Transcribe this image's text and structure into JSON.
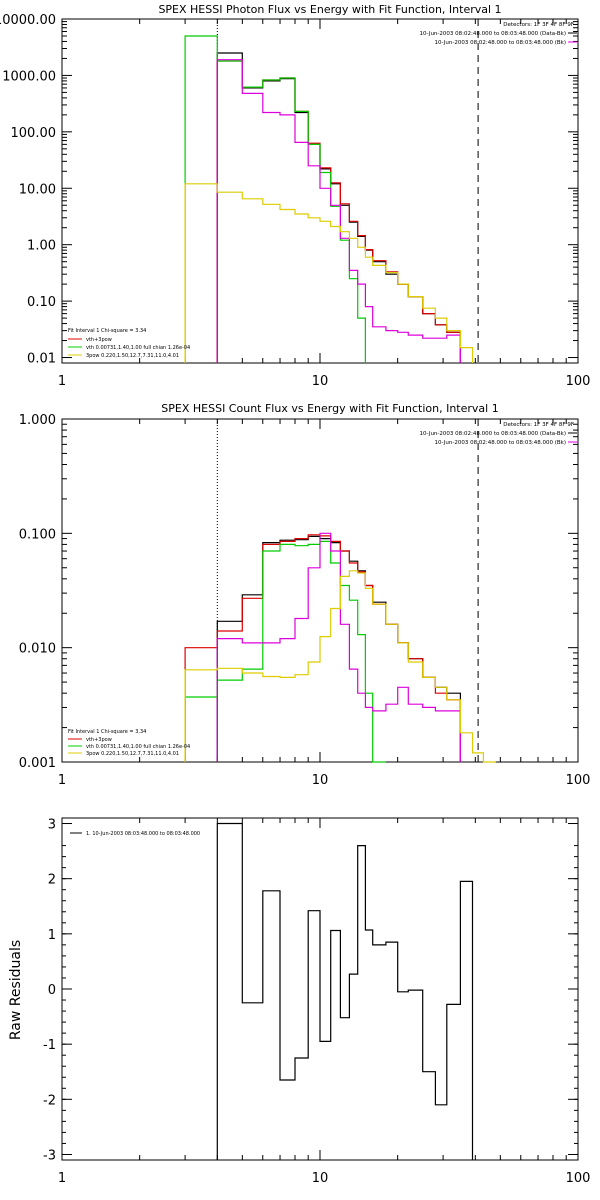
{
  "chart_data": [
    {
      "type": "line",
      "step": true,
      "title": "SPEX HESSI Photon Flux vs Energy with Fit Function, Interval 1",
      "x_scale": "log",
      "y_scale": "log",
      "xlim": [
        1,
        100
      ],
      "ylim": [
        0.008,
        10000
      ],
      "x_ticks": [
        1,
        10,
        100
      ],
      "x_tick_labels": [
        "1",
        "10",
        "100"
      ],
      "y_ticks": [
        0.01,
        0.1,
        1,
        10,
        100,
        1000,
        10000
      ],
      "y_tick_labels": [
        "0.01",
        "0.10",
        "1.00",
        "10.00",
        "100.00",
        "1000.00",
        "10000.00"
      ],
      "vlines": [
        {
          "x": 4,
          "style": "dotted"
        },
        {
          "x": 41,
          "style": "dashed"
        }
      ],
      "info_lines": [
        "Detectors: 1F 3F 4F 8F 9F",
        "10-Jun-2003 08:02:48.000 to 08:03:48.000 (Data-Bk)",
        "10-Jun-2003 08:02:48.000 to 08:03:48.000 (Bk)"
      ],
      "legend_lines": [
        "Fit Interval 1   Chi-square = 3.34",
        "vth+3pow",
        "vth 0.00731,1.40,1.00  full chian 1.26e-04",
        "3pow 0.220,1.50,12.7,7.31,11.0,4.01"
      ],
      "edges": [
        3,
        4,
        5,
        6,
        7,
        8,
        9,
        10,
        11,
        12,
        13,
        14,
        15,
        16,
        18,
        20,
        22,
        25,
        28,
        31,
        35,
        39,
        43
      ],
      "series": [
        {
          "color": "#000000",
          "from": 4,
          "values": [
            2500,
            600,
            800,
            880,
            220,
            60,
            22,
            12,
            5,
            2.5,
            1.4,
            0.8,
            0.5,
            0.3,
            0.2,
            0.12,
            0.06,
            0.038,
            0.028
          ]
        },
        {
          "color": "#dd0000",
          "from": 4,
          "values": [
            1800,
            620,
            830,
            900,
            230,
            63,
            23,
            12.5,
            5.3,
            2.6,
            1.45,
            0.82,
            0.52,
            0.33,
            0.2,
            0.12,
            0.06,
            0.038,
            0.028
          ]
        },
        {
          "color": "#00cc00",
          "from": 3,
          "values": [
            5000,
            1800,
            620,
            830,
            900,
            230,
            60,
            19,
            4.8,
            1.2,
            0.25,
            0.05
          ]
        },
        {
          "color": "#dd00dd",
          "from": 4,
          "values": [
            1900,
            480,
            220,
            200,
            65,
            25,
            10,
            5,
            1.3,
            0.35,
            0.2,
            0.08,
            0.035,
            0.03,
            0.028,
            0.025,
            0.022,
            0.022,
            0.025
          ]
        },
        {
          "color": "#ddcc00",
          "from": 3,
          "values": [
            12,
            8.5,
            6.5,
            5.2,
            4.2,
            3.5,
            3,
            2.6,
            2.1,
            1.7,
            1.3,
            0.9,
            0.6,
            0.43,
            0.32,
            0.2,
            0.12,
            0.075,
            0.05,
            0.03,
            0.015
          ]
        }
      ]
    },
    {
      "type": "line",
      "step": true,
      "title": "SPEX HESSI Count Flux vs Energy with Fit Function, Interval 1",
      "x_scale": "log",
      "y_scale": "log",
      "xlim": [
        1,
        100
      ],
      "ylim": [
        0.001,
        1.0
      ],
      "x_ticks": [
        1,
        10,
        100
      ],
      "x_tick_labels": [
        "1",
        "10",
        "100"
      ],
      "y_ticks": [
        0.001,
        0.01,
        0.1,
        1.0
      ],
      "y_tick_labels": [
        "0.001",
        "0.010",
        "0.100",
        "1.000"
      ],
      "vlines": [
        {
          "x": 4,
          "style": "dotted"
        },
        {
          "x": 41,
          "style": "dashed"
        }
      ],
      "info_lines": [
        "Detectors: 1F 3F 4F 8F 9F",
        "10-Jun-2003 08:02:48.000 to 08:03:48.000 (Data-Bk)",
        "10-Jun-2003 08:02:48.000 to 08:03:48.000 (Bk)"
      ],
      "legend_lines": [
        "Fit Interval 1   Chi-square = 3.34",
        "vth+3pow",
        "vth 0.00731,1.40,1.00  full chian 1.26e-04",
        "3pow 0.220,1.50,12.7,7.31,11.0,4.01"
      ],
      "edges": [
        3,
        4,
        5,
        6,
        7,
        8,
        9,
        10,
        11,
        12,
        13,
        14,
        15,
        16,
        18,
        20,
        22,
        25,
        28,
        31,
        35,
        39,
        43,
        48,
        53
      ],
      "series": [
        {
          "color": "#000000",
          "from": 4,
          "values": [
            0.017,
            0.029,
            0.083,
            0.087,
            0.088,
            0.094,
            0.09,
            0.083,
            0.07,
            0.057,
            0.047,
            0.035,
            0.025,
            0.016,
            0.011,
            0.008,
            0.0055,
            0.0045,
            0.004
          ]
        },
        {
          "color": "#dd0000",
          "from": 3,
          "values": [
            0.01,
            0.014,
            0.027,
            0.08,
            0.085,
            0.09,
            0.097,
            0.095,
            0.085,
            0.07,
            0.055,
            0.046,
            0.035,
            0.024,
            0.016,
            0.011,
            0.008,
            0.0055,
            0.004,
            0.0035
          ]
        },
        {
          "color": "#00cc00",
          "from": 3,
          "values": [
            0.0037,
            0.0052,
            0.0065,
            0.07,
            0.08,
            0.078,
            0.08,
            0.085,
            0.055,
            0.035,
            0.026,
            0.013,
            0.004,
            0.001
          ]
        },
        {
          "color": "#dd00dd",
          "from": 4,
          "values": [
            0.012,
            0.011,
            0.011,
            0.012,
            0.018,
            0.05,
            0.1,
            0.07,
            0.016,
            0.0065,
            0.004,
            0.003,
            0.0028,
            0.0032,
            0.0045,
            0.0032,
            0.003,
            0.0028,
            0.0028
          ]
        },
        {
          "color": "#ddcc00",
          "from": 3,
          "values": [
            0.0064,
            0.0066,
            0.006,
            0.0056,
            0.0055,
            0.0058,
            0.0075,
            0.0125,
            0.022,
            0.042,
            0.047,
            0.045,
            0.033,
            0.024,
            0.016,
            0.011,
            0.0075,
            0.0055,
            0.0045,
            0.0035,
            0.0018,
            0.0012,
            0.001
          ]
        }
      ]
    },
    {
      "type": "line",
      "step": true,
      "title": "",
      "ylabel": "Raw Residuals",
      "x_scale": "log",
      "y_scale": "linear",
      "xlim": [
        1,
        100
      ],
      "ylim": [
        -3.1,
        3.1
      ],
      "x_ticks": [
        1,
        10,
        100
      ],
      "x_tick_labels": [
        "1",
        "10",
        "100"
      ],
      "y_ticks": [
        -3,
        -2,
        -1,
        0,
        1,
        2,
        3
      ],
      "y_tick_labels": [
        "-3",
        "-2",
        "-1",
        "0",
        "1",
        "2",
        "3"
      ],
      "legend_lines": [
        "1. 10-Jun-2003 08:03:48.000 to 08:03:48.000"
      ],
      "edges": [
        4,
        5,
        6,
        7,
        8,
        9,
        10,
        11,
        12,
        13,
        14,
        15,
        16,
        18,
        20,
        22,
        25,
        28,
        31,
        35,
        39,
        43
      ],
      "baseline": -3.1,
      "series": [
        {
          "color": "#000000",
          "from": 4,
          "values": [
            3.0,
            -0.25,
            1.78,
            -1.65,
            -1.25,
            1.42,
            -0.95,
            1.06,
            -0.52,
            0.27,
            2.6,
            1.07,
            0.8,
            0.85,
            -0.05,
            -0.02,
            -1.5,
            -2.1,
            -0.28,
            1.95
          ]
        }
      ]
    }
  ]
}
